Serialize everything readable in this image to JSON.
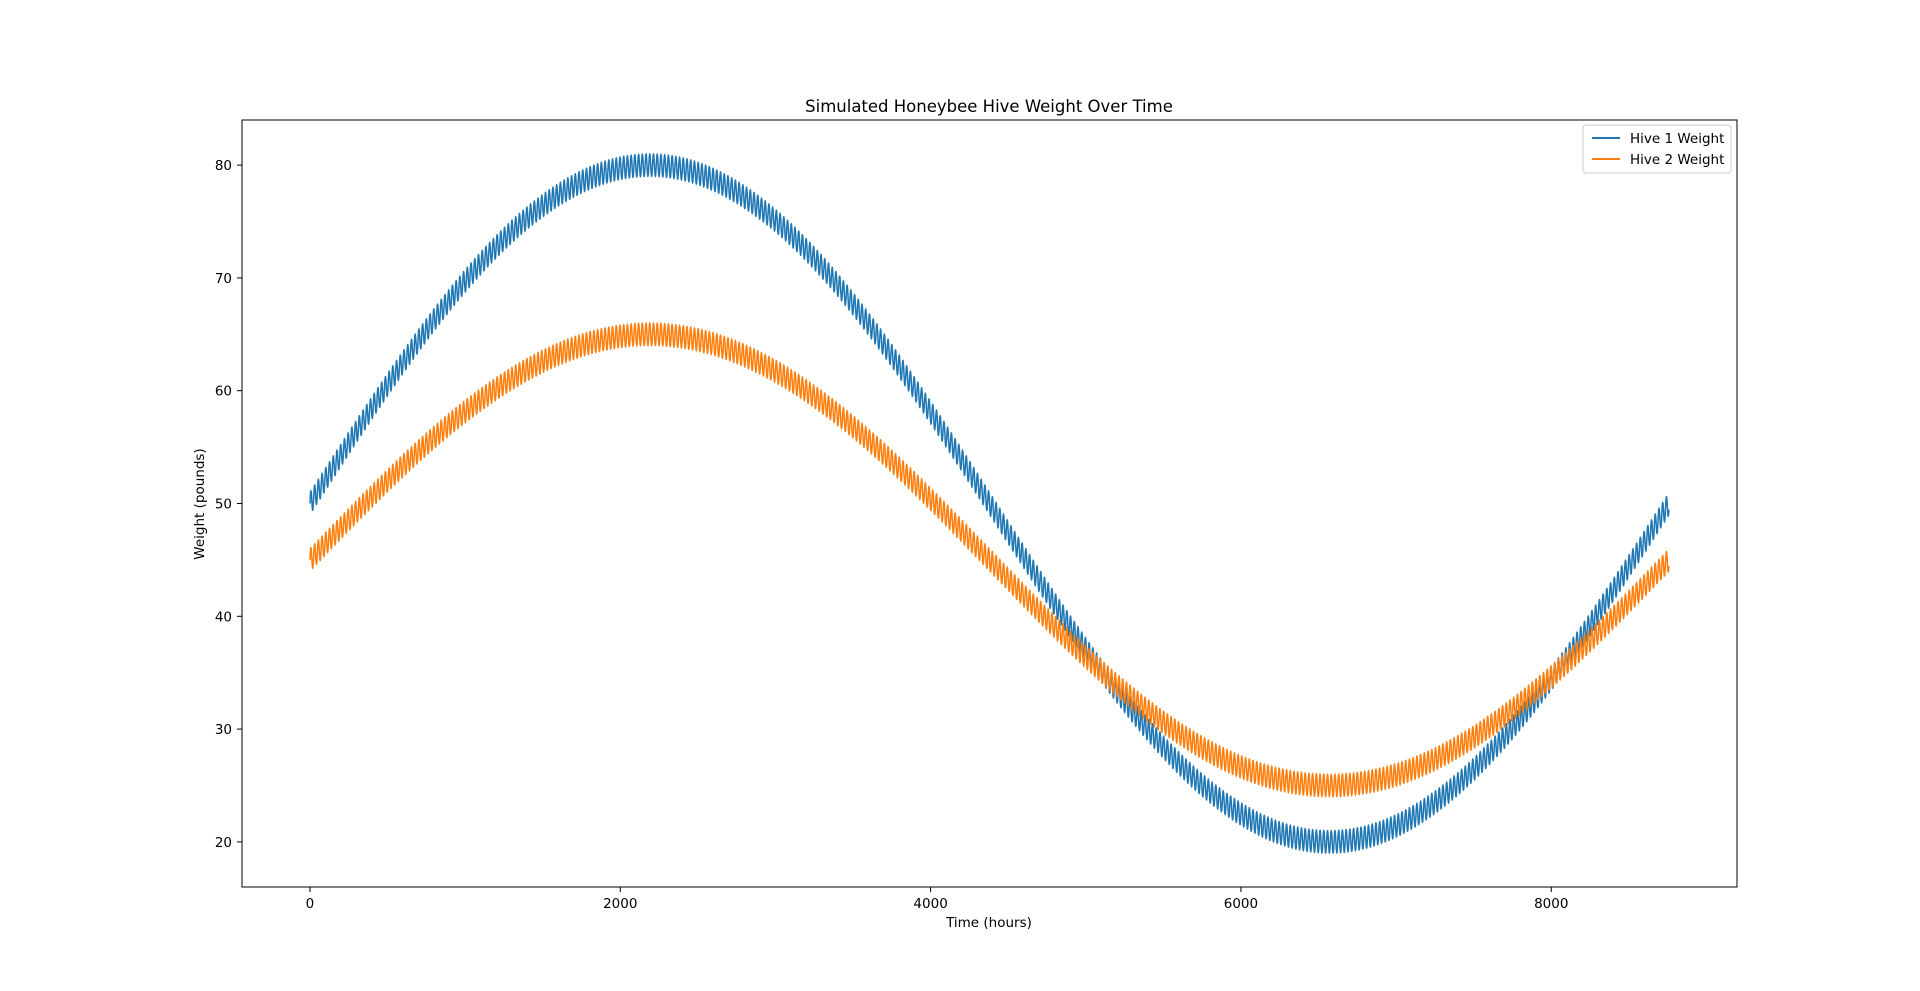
{
  "chart_data": {
    "type": "line",
    "title": "Simulated Honeybee Hive Weight Over Time",
    "xlabel": "Time (hours)",
    "ylabel": "Weight (pounds)",
    "xlim": [
      -438,
      9197
    ],
    "ylim": [
      16,
      84
    ],
    "xticks": [
      0,
      2000,
      4000,
      6000,
      8000
    ],
    "xtick_labels": [
      "0",
      "2000",
      "4000",
      "6000",
      "8000"
    ],
    "yticks": [
      20,
      30,
      40,
      50,
      60,
      70,
      80
    ],
    "ytick_labels": [
      "20",
      "30",
      "40",
      "50",
      "60",
      "70",
      "80"
    ],
    "grid": false,
    "legend_position": "upper right",
    "x_range": [
      0,
      8759
    ],
    "daily_period_hours": 24,
    "series": [
      {
        "name": "Hive 1 Weight",
        "color": "#1f77b4",
        "baseline": 50,
        "seasonal_amplitude": 30,
        "daily_amplitude": 1,
        "seasonal_period_hours": 8760,
        "start_value": 50,
        "peak": {
          "x": 2190,
          "y": 80
        },
        "trough": {
          "x": 6570,
          "y": 20
        },
        "end_value": 50
      },
      {
        "name": "Hive 2 Weight",
        "color": "#ff7f0e",
        "baseline": 45,
        "seasonal_amplitude": 20,
        "daily_amplitude": 1,
        "seasonal_period_hours": 8760,
        "start_value": 45,
        "peak": {
          "x": 2190,
          "y": 65
        },
        "trough": {
          "x": 6570,
          "y": 25
        },
        "end_value": 45
      }
    ]
  }
}
